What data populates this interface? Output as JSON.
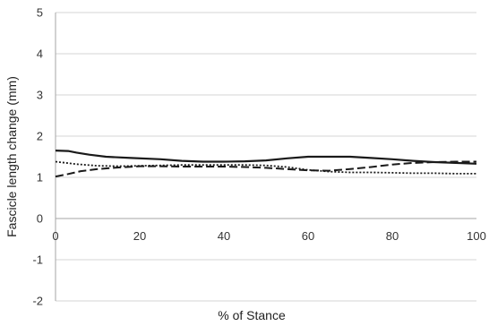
{
  "chart_data": {
    "type": "line",
    "title": "",
    "xlabel": "% of Stance",
    "ylabel": "Fascicle length change (mm)",
    "xlim": [
      0,
      100
    ],
    "ylim": [
      -2,
      5
    ],
    "x_ticks": [
      "0",
      "20",
      "40",
      "60",
      "80",
      "100"
    ],
    "y_ticks": [
      "-2",
      "-1",
      "0",
      "1",
      "2",
      "3",
      "4",
      "5"
    ],
    "grid": "horizontal",
    "legend": "none",
    "series": [
      {
        "style": "solid",
        "color": "#1a1a1a",
        "x": [
          0,
          3,
          5,
          8,
          12,
          18,
          25,
          30,
          35,
          40,
          45,
          50,
          55,
          60,
          65,
          70,
          75,
          80,
          85,
          90,
          95,
          100
        ],
        "y": [
          1.65,
          1.64,
          1.6,
          1.55,
          1.5,
          1.47,
          1.44,
          1.4,
          1.38,
          1.38,
          1.39,
          1.41,
          1.46,
          1.5,
          1.5,
          1.5,
          1.47,
          1.44,
          1.4,
          1.37,
          1.35,
          1.33
        ]
      },
      {
        "style": "dashed",
        "color": "#1a1a1a",
        "x": [
          0,
          3,
          6,
          10,
          15,
          20,
          25,
          30,
          35,
          40,
          45,
          50,
          55,
          60,
          65,
          70,
          75,
          80,
          85,
          90,
          95,
          100
        ],
        "y": [
          1.02,
          1.08,
          1.15,
          1.2,
          1.24,
          1.27,
          1.27,
          1.26,
          1.26,
          1.26,
          1.25,
          1.23,
          1.2,
          1.17,
          1.16,
          1.2,
          1.25,
          1.31,
          1.35,
          1.37,
          1.38,
          1.38
        ]
      },
      {
        "style": "dotted",
        "color": "#1a1a1a",
        "x": [
          0,
          5,
          10,
          15,
          20,
          25,
          30,
          35,
          40,
          45,
          50,
          55,
          60,
          65,
          70,
          75,
          80,
          85,
          90,
          95,
          100
        ],
        "y": [
          1.38,
          1.32,
          1.28,
          1.27,
          1.28,
          1.29,
          1.3,
          1.3,
          1.3,
          1.3,
          1.29,
          1.25,
          1.18,
          1.14,
          1.12,
          1.12,
          1.11,
          1.1,
          1.1,
          1.09,
          1.09
        ]
      }
    ]
  }
}
